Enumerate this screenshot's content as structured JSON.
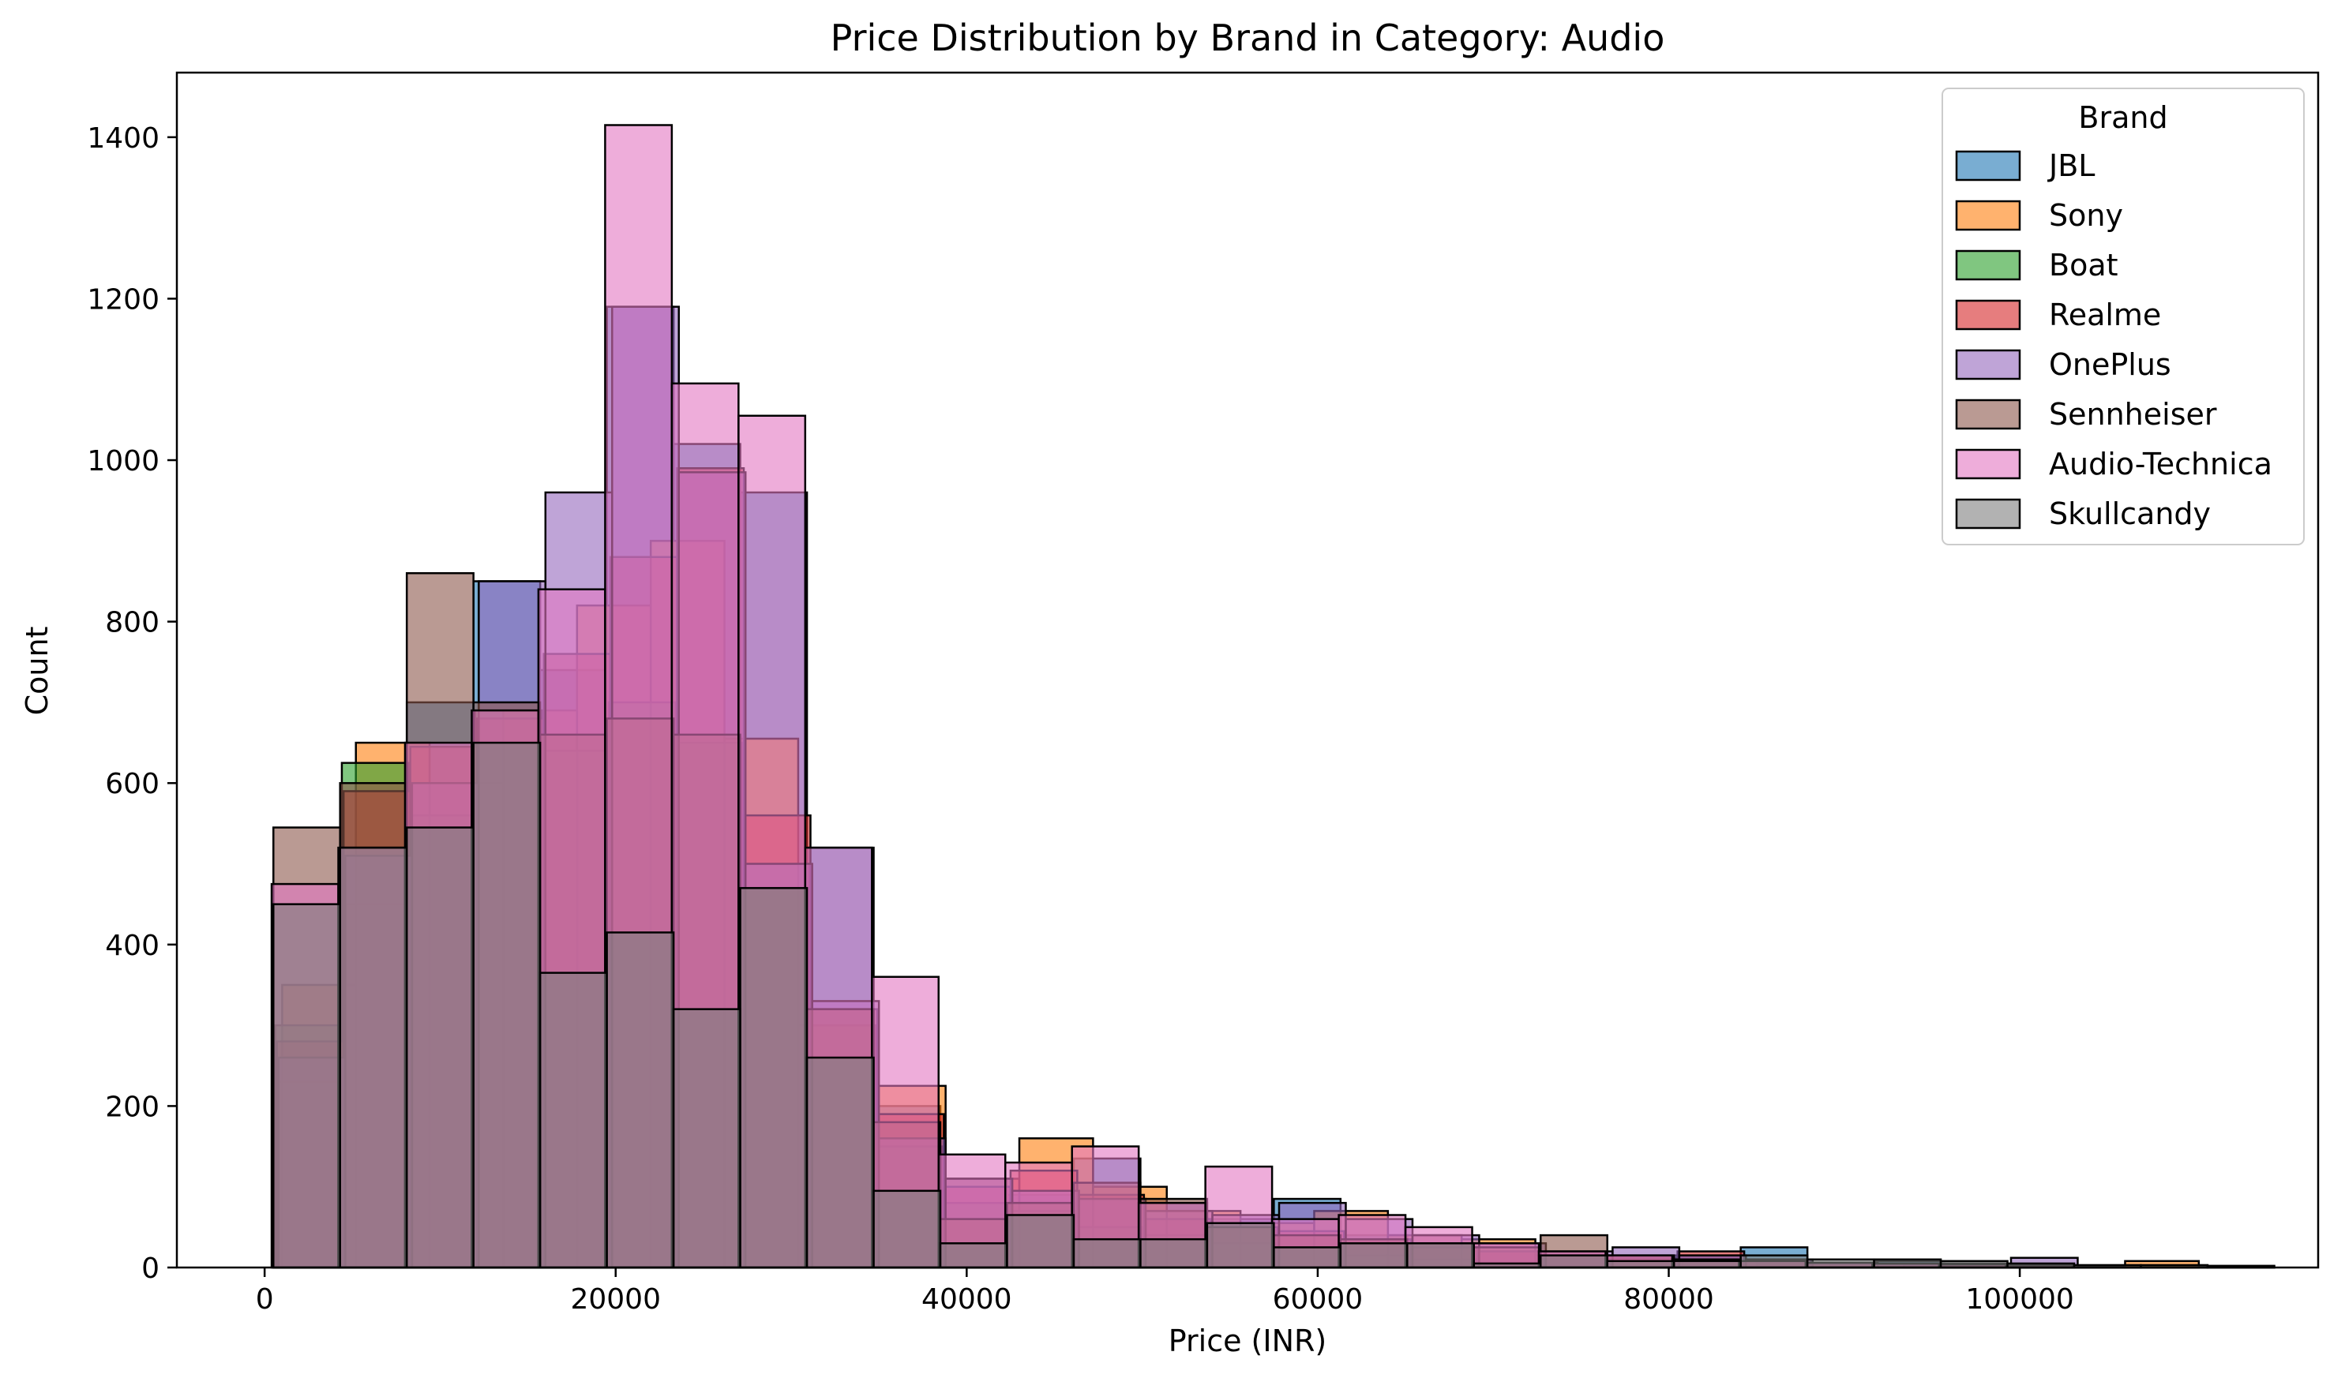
{
  "chart_data": {
    "type": "histogram",
    "title": "Price Distribution by Brand in Category: Audio",
    "xlabel": "Price (INR)",
    "ylabel": "Count",
    "xlim": [
      -5000,
      117000
    ],
    "ylim": [
      0,
      1480
    ],
    "x_ticks": [
      0,
      20000,
      40000,
      60000,
      80000,
      100000
    ],
    "x_tick_labels": [
      "0",
      "20000",
      "40000",
      "60000",
      "80000",
      "100000"
    ],
    "y_ticks": [
      0,
      200,
      400,
      600,
      800,
      1000,
      1200,
      1400
    ],
    "y_tick_labels": [
      "0",
      "200",
      "400",
      "600",
      "800",
      "1000",
      "1200",
      "1400"
    ],
    "grid": false,
    "legend": {
      "title": "Brand",
      "placement": "top-right"
    },
    "series": [
      {
        "name": "JBL",
        "color": "#1f77b4",
        "bins": [
          [
            500,
            4300,
            230
          ],
          [
            4300,
            8100,
            450
          ],
          [
            8100,
            11900,
            700
          ],
          [
            11900,
            15700,
            850
          ],
          [
            15700,
            19500,
            740
          ],
          [
            19500,
            23300,
            1190
          ],
          [
            23300,
            27100,
            1020
          ],
          [
            27100,
            30900,
            960
          ],
          [
            30900,
            34700,
            520
          ],
          [
            34700,
            38500,
            200
          ],
          [
            38500,
            42300,
            110
          ],
          [
            42300,
            46100,
            90
          ],
          [
            46100,
            49900,
            135
          ],
          [
            49900,
            53700,
            80
          ],
          [
            53700,
            57500,
            60
          ],
          [
            57500,
            61300,
            85
          ],
          [
            61300,
            65100,
            40
          ],
          [
            65100,
            68900,
            30
          ],
          [
            68900,
            72700,
            20
          ],
          [
            72700,
            76500,
            15
          ],
          [
            76500,
            80300,
            10
          ],
          [
            80300,
            84100,
            15
          ],
          [
            84100,
            87900,
            25
          ],
          [
            87900,
            91700,
            5
          ],
          [
            91700,
            95500,
            8
          ],
          [
            95500,
            99300,
            5
          ],
          [
            99300,
            103100,
            3
          ],
          [
            103100,
            106900,
            2
          ],
          [
            106900,
            110700,
            2
          ],
          [
            110700,
            114500,
            2
          ]
        ]
      },
      {
        "name": "Sony",
        "color": "#ff7f0e",
        "bins": [
          [
            1000,
            5200,
            350
          ],
          [
            5200,
            9400,
            650
          ],
          [
            9400,
            13600,
            600
          ],
          [
            13600,
            17800,
            690
          ],
          [
            17800,
            22000,
            820
          ],
          [
            22000,
            26200,
            900
          ],
          [
            26200,
            30400,
            655
          ],
          [
            30400,
            34600,
            300
          ],
          [
            34600,
            38800,
            225
          ],
          [
            38800,
            43000,
            110
          ],
          [
            43000,
            47200,
            160
          ],
          [
            47200,
            51400,
            100
          ],
          [
            51400,
            55600,
            70
          ],
          [
            55600,
            59800,
            55
          ],
          [
            59800,
            64000,
            70
          ],
          [
            64000,
            68200,
            40
          ],
          [
            68200,
            72400,
            35
          ],
          [
            72400,
            76600,
            15
          ],
          [
            76600,
            80800,
            10
          ],
          [
            80800,
            85000,
            8
          ],
          [
            85000,
            89200,
            5
          ],
          [
            89200,
            93400,
            4
          ],
          [
            93400,
            97600,
            3
          ],
          [
            97600,
            101800,
            3
          ],
          [
            101800,
            106000,
            2
          ],
          [
            106000,
            110200,
            8
          ]
        ]
      },
      {
        "name": "Boat",
        "color": "#2ca02c",
        "bins": [
          [
            600,
            4400,
            300
          ],
          [
            4400,
            8200,
            625
          ],
          [
            8200,
            12000,
            560
          ],
          [
            12000,
            15800,
            690
          ],
          [
            15800,
            19600,
            640
          ],
          [
            19600,
            23400,
            700
          ],
          [
            23400,
            27200,
            650
          ],
          [
            27200,
            31000,
            500
          ],
          [
            31000,
            34800,
            300
          ],
          [
            34800,
            38600,
            150
          ],
          [
            38600,
            42400,
            80
          ],
          [
            42400,
            46200,
            70
          ],
          [
            46200,
            50000,
            50
          ],
          [
            50000,
            53800,
            40
          ],
          [
            53800,
            57600,
            30
          ],
          [
            57600,
            61400,
            25
          ],
          [
            61400,
            65200,
            15
          ],
          [
            65200,
            69000,
            10
          ]
        ]
      },
      {
        "name": "Realme",
        "color": "#d62728",
        "bins": [
          [
            700,
            4500,
            280
          ],
          [
            4500,
            8300,
            590
          ],
          [
            8300,
            12100,
            645
          ],
          [
            12100,
            15900,
            680
          ],
          [
            15900,
            19700,
            760
          ],
          [
            19700,
            23500,
            880
          ],
          [
            23500,
            27300,
            990
          ],
          [
            27300,
            31100,
            560
          ],
          [
            31100,
            34900,
            320
          ],
          [
            34900,
            38700,
            190
          ],
          [
            38700,
            42500,
            100
          ],
          [
            42500,
            46300,
            120
          ],
          [
            46300,
            50100,
            90
          ],
          [
            50100,
            53900,
            60
          ],
          [
            53900,
            57700,
            50
          ],
          [
            57700,
            61500,
            45
          ],
          [
            61500,
            65300,
            35
          ],
          [
            65300,
            69100,
            25
          ],
          [
            69100,
            72900,
            20
          ],
          [
            72900,
            76700,
            15
          ],
          [
            76700,
            80500,
            12
          ],
          [
            80500,
            84300,
            20
          ],
          [
            84300,
            88100,
            10
          ],
          [
            88100,
            91900,
            5
          ]
        ]
      },
      {
        "name": "OnePlus",
        "color": "#9467bd",
        "bins": [
          [
            800,
            4600,
            260
          ],
          [
            4600,
            8400,
            510
          ],
          [
            8400,
            12200,
            600
          ],
          [
            12200,
            16000,
            850
          ],
          [
            16000,
            19800,
            960
          ],
          [
            19800,
            23600,
            1190
          ],
          [
            23600,
            27400,
            985
          ],
          [
            27400,
            31200,
            500
          ],
          [
            31200,
            35000,
            330
          ],
          [
            35000,
            38800,
            160
          ],
          [
            38800,
            42600,
            110
          ],
          [
            42600,
            46400,
            95
          ],
          [
            46400,
            50200,
            85
          ],
          [
            50200,
            54000,
            70
          ],
          [
            54000,
            57800,
            65
          ],
          [
            57800,
            61600,
            80
          ],
          [
            61600,
            65400,
            60
          ],
          [
            65400,
            69200,
            40
          ],
          [
            69200,
            73000,
            30
          ],
          [
            73000,
            76800,
            20
          ],
          [
            76800,
            80600,
            25
          ],
          [
            80600,
            84400,
            15
          ],
          [
            84400,
            88200,
            10
          ],
          [
            88200,
            91900,
            6
          ],
          [
            91900,
            95700,
            5
          ],
          [
            95700,
            99500,
            4
          ],
          [
            99500,
            103300,
            12
          ]
        ]
      },
      {
        "name": "Sennheiser",
        "color": "#8c564b",
        "bins": [
          [
            500,
            4300,
            545
          ],
          [
            4300,
            8100,
            600
          ],
          [
            8100,
            11900,
            860
          ],
          [
            11900,
            15700,
            700
          ],
          [
            15700,
            19500,
            660
          ],
          [
            19500,
            23300,
            680
          ],
          [
            23300,
            27100,
            660
          ],
          [
            27100,
            30900,
            470
          ],
          [
            30900,
            34700,
            320
          ],
          [
            34700,
            38500,
            180
          ],
          [
            38500,
            42300,
            60
          ],
          [
            42300,
            46100,
            80
          ],
          [
            46100,
            49900,
            105
          ],
          [
            49900,
            53700,
            85
          ],
          [
            53700,
            57500,
            50
          ],
          [
            57500,
            61300,
            40
          ],
          [
            61300,
            65100,
            35
          ],
          [
            65100,
            68900,
            30
          ],
          [
            68900,
            72700,
            25
          ],
          [
            72700,
            76500,
            40
          ],
          [
            76500,
            80300,
            15
          ],
          [
            80300,
            84100,
            10
          ],
          [
            84100,
            87900,
            8
          ],
          [
            87900,
            91700,
            5
          ],
          [
            91700,
            95500,
            4
          ],
          [
            95500,
            99300,
            3
          ],
          [
            99300,
            103100,
            2
          ]
        ]
      },
      {
        "name": "Audio-Technica",
        "color": "#e377c2",
        "bins": [
          [
            400,
            4200,
            475
          ],
          [
            4200,
            8000,
            520
          ],
          [
            8000,
            11800,
            650
          ],
          [
            11800,
            15600,
            690
          ],
          [
            15600,
            19400,
            840
          ],
          [
            19400,
            23200,
            1415
          ],
          [
            23200,
            27000,
            1095
          ],
          [
            27000,
            30800,
            1055
          ],
          [
            30800,
            34600,
            520
          ],
          [
            34600,
            38400,
            360
          ],
          [
            38400,
            42200,
            140
          ],
          [
            42200,
            46000,
            130
          ],
          [
            46000,
            49800,
            150
          ],
          [
            49800,
            53600,
            80
          ],
          [
            53600,
            57400,
            125
          ],
          [
            57400,
            61200,
            60
          ],
          [
            61200,
            65000,
            65
          ],
          [
            65000,
            68800,
            50
          ],
          [
            68800,
            72600,
            30
          ],
          [
            72600,
            76400,
            20
          ],
          [
            76400,
            80200,
            15
          ],
          [
            80200,
            84000,
            10
          ],
          [
            84000,
            87800,
            8
          ],
          [
            87800,
            91600,
            6
          ],
          [
            91600,
            95400,
            5
          ],
          [
            95400,
            99200,
            4
          ],
          [
            99200,
            103000,
            3
          ]
        ]
      },
      {
        "name": "Skullcandy",
        "color": "#7f7f7f",
        "bins": [
          [
            500,
            4300,
            450
          ],
          [
            4300,
            8100,
            520
          ],
          [
            8100,
            11900,
            545
          ],
          [
            11900,
            15700,
            650
          ],
          [
            15700,
            19500,
            365
          ],
          [
            19500,
            23300,
            415
          ],
          [
            23300,
            27100,
            320
          ],
          [
            27100,
            30900,
            470
          ],
          [
            30900,
            34700,
            260
          ],
          [
            34700,
            38500,
            95
          ],
          [
            38500,
            42300,
            30
          ],
          [
            42300,
            46100,
            65
          ],
          [
            46100,
            49900,
            35
          ],
          [
            49900,
            53700,
            35
          ],
          [
            53700,
            57500,
            55
          ],
          [
            57500,
            61300,
            25
          ],
          [
            61300,
            65100,
            30
          ],
          [
            65100,
            68900,
            30
          ],
          [
            68900,
            72700,
            5
          ],
          [
            72700,
            76500,
            15
          ],
          [
            76500,
            80300,
            8
          ],
          [
            80300,
            84100,
            8
          ],
          [
            84100,
            87900,
            15
          ],
          [
            87900,
            91700,
            10
          ],
          [
            91700,
            95500,
            10
          ],
          [
            95500,
            99300,
            8
          ],
          [
            99300,
            103100,
            5
          ],
          [
            103100,
            106900,
            3
          ],
          [
            106900,
            110700,
            3
          ],
          [
            110700,
            114500,
            2
          ]
        ]
      }
    ]
  }
}
